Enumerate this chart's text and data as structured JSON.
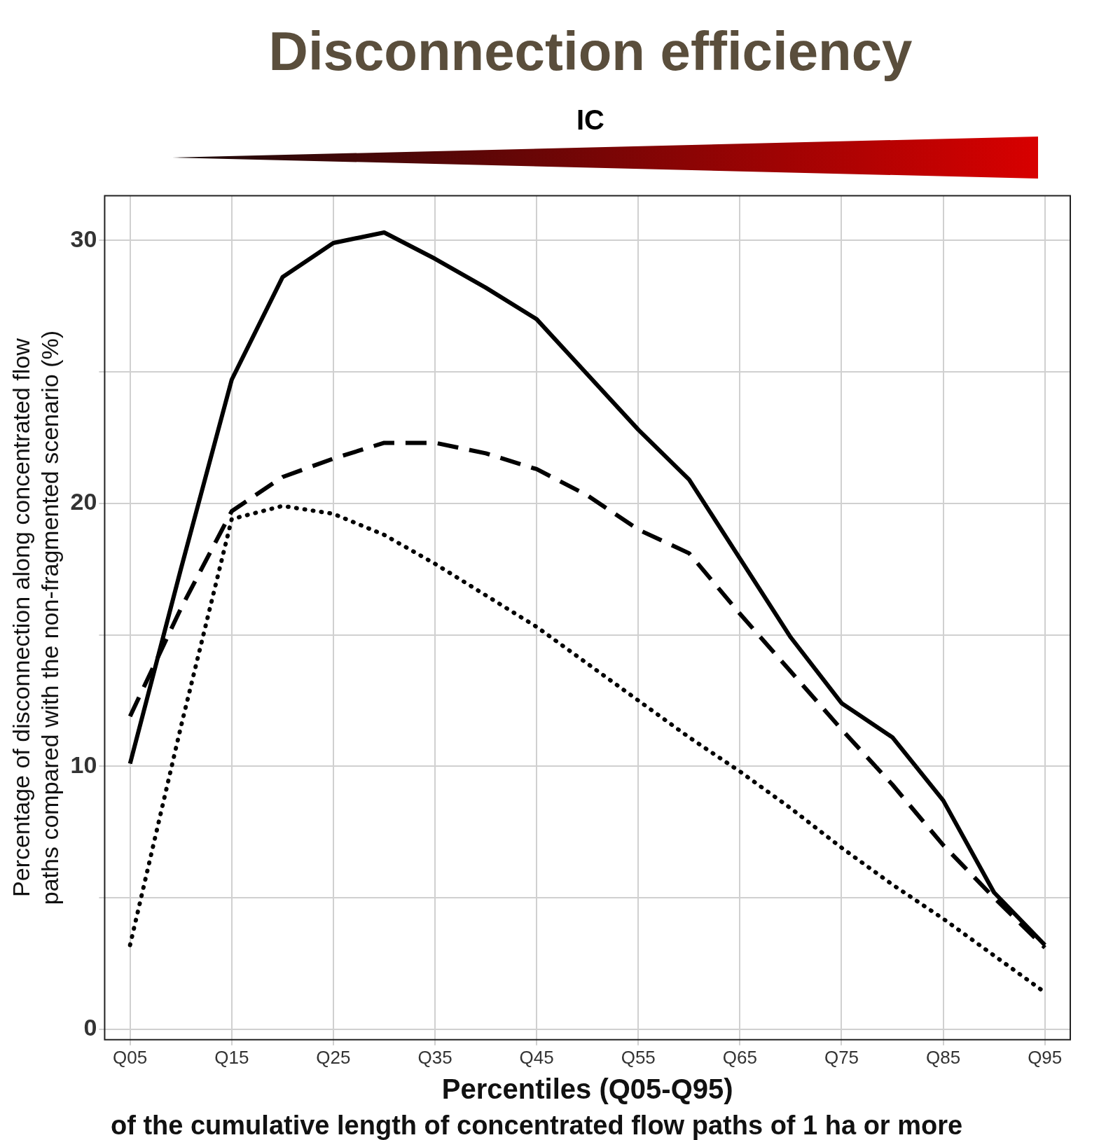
{
  "chart_data": {
    "type": "line",
    "title": "Disconnection efficiency",
    "xlabel": "Percentiles (Q05-Q95)",
    "ylabel": "Percentage of disconnection along concentrated flow paths compared with the non-fragmented scenario (%)",
    "annotations": [
      "IC",
      "of the cumulative length of concentrated flow paths of 1 ha or more"
    ],
    "categories": [
      "Q05",
      null,
      "Q15",
      null,
      "Q25",
      null,
      "Q35",
      null,
      "Q45",
      null,
      "Q55",
      null,
      "Q65",
      null,
      "Q75",
      null,
      "Q85",
      null,
      "Q95"
    ],
    "series": [
      {
        "color": "#000000",
        "line_style": "solid",
        "values": [
          10.1,
          17.5,
          24.7,
          28.6,
          29.9,
          30.3,
          29.3,
          28.2,
          27.0,
          24.9,
          22.8,
          20.9,
          17.9,
          14.9,
          12.4,
          11.1,
          8.7,
          5.2,
          3.2
        ]
      },
      {
        "color": "#000000",
        "line_style": "dashed",
        "values": [
          11.9,
          16.0,
          19.7,
          21.0,
          21.7,
          22.3,
          22.3,
          21.9,
          21.3,
          20.3,
          19.0,
          18.1,
          15.8,
          13.6,
          11.4,
          9.3,
          7.0,
          5.0,
          3.1
        ]
      },
      {
        "color": "#000000",
        "line_style": "dotted",
        "values": [
          3.2,
          11.5,
          19.4,
          19.9,
          19.6,
          18.8,
          17.7,
          16.5,
          15.3,
          13.9,
          12.5,
          11.1,
          9.8,
          8.4,
          6.9,
          5.5,
          4.2,
          2.8,
          1.4
        ]
      }
    ],
    "ylim": [
      -0.4,
      31.7
    ],
    "yticks": [
      0,
      {
        "value": 5,
        "label": null
      },
      10,
      {
        "value": 15,
        "label": null
      },
      20,
      {
        "value": 25,
        "label": null
      },
      30
    ],
    "grid": true,
    "legend": false,
    "marker": "none"
  }
}
